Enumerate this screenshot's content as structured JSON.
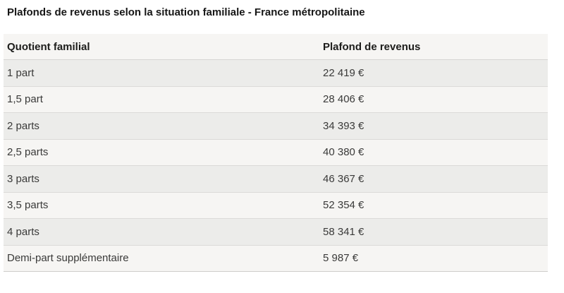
{
  "title": "Plafonds de revenus selon la situation familiale - France métropolitaine",
  "table": {
    "columns": {
      "quotient": "Quotient familial",
      "plafond": "Plafond de revenus"
    },
    "rows": [
      {
        "label": "1 part",
        "value": "22 419 €"
      },
      {
        "label": "1,5 part",
        "value": "28 406 €"
      },
      {
        "label": "2 parts",
        "value": "34 393 €"
      },
      {
        "label": "2,5 parts",
        "value": "40 380 €"
      },
      {
        "label": "3 parts",
        "value": "46 367 €"
      },
      {
        "label": "3,5 parts",
        "value": "52 354 €"
      },
      {
        "label": "4 parts",
        "value": "58 341 €"
      },
      {
        "label": "Demi-part supplémentaire",
        "value": "5 987 €"
      }
    ]
  },
  "colors": {
    "header_bg": "#f6f5f3",
    "row_dark_bg": "#ececea",
    "row_light_bg": "#f6f5f3",
    "divider": "#dbdad8",
    "heading_text": "#1d1d1b",
    "cell_text": "#3a3a39"
  }
}
